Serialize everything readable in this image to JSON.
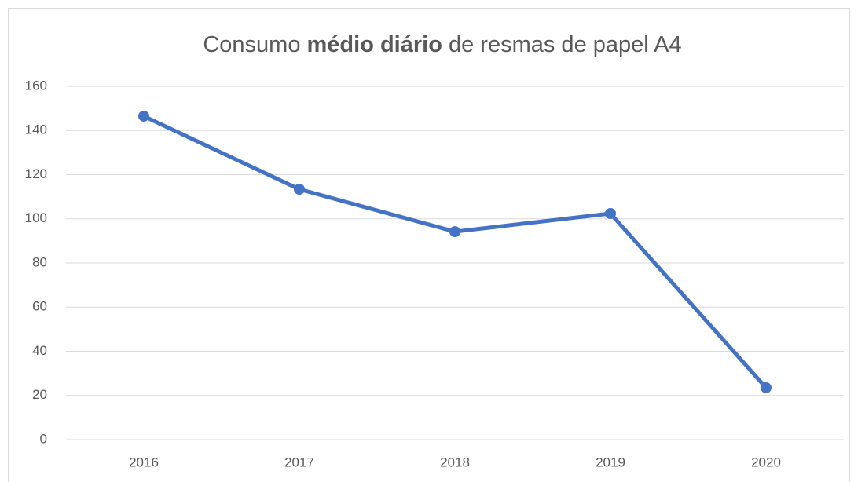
{
  "chart_data": {
    "type": "line",
    "title": "Consumo médio diário de resmas de papel A4",
    "title_bold": "médio diário",
    "categories": [
      "2016",
      "2017",
      "2018",
      "2019",
      "2020"
    ],
    "series": [
      {
        "name": "Consumo",
        "color": "#4472c4",
        "values": [
          146.5,
          113.4,
          94.2,
          102.4,
          23.5
        ]
      }
    ],
    "ylim": [
      0,
      160
    ],
    "yticks": [
      0,
      20,
      40,
      60,
      80,
      100,
      120,
      140,
      160
    ],
    "grid": true,
    "legend": false
  }
}
